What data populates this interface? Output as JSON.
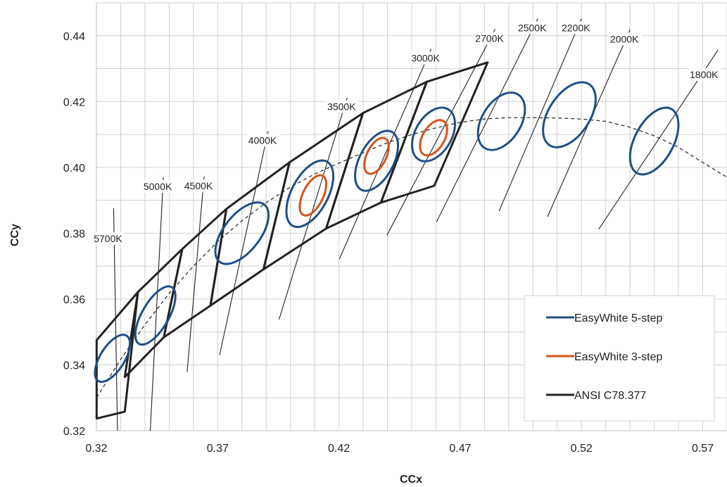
{
  "chart_data": {
    "type": "scatter",
    "xlabel": "CCx",
    "ylabel": "CCy",
    "xlim": [
      0.32,
      0.58
    ],
    "ylim": [
      0.32,
      0.45
    ],
    "x_ticks": [
      "0.32",
      "0.37",
      "0.42",
      "0.47",
      "0.52",
      "0.57"
    ],
    "x_tick_values": [
      0.32,
      0.37,
      0.42,
      0.47,
      0.52,
      0.57
    ],
    "y_ticks": [
      "0.32",
      "0.34",
      "0.36",
      "0.38",
      "0.40",
      "0.42",
      "0.44"
    ],
    "y_tick_values": [
      0.32,
      0.34,
      0.36,
      0.38,
      0.4,
      0.42,
      0.44
    ],
    "grid": true,
    "legend_placement": "bottom-right",
    "legend": [
      {
        "name": "EasyWhite 5-step",
        "color": "#1f4e87"
      },
      {
        "name": "EasyWhite 3-step",
        "color": "#d4541c"
      },
      {
        "name": "ANSI C78.377",
        "color": "#222222"
      }
    ],
    "cct_lines": [
      {
        "label": "5700K",
        "x1": 0.3271,
        "y1": 0.3876,
        "x2": 0.3287,
        "y2": 0.32
      },
      {
        "label": "5000K",
        "x1": 0.3476,
        "y1": 0.397,
        "x2": 0.3422,
        "y2": 0.32
      },
      {
        "label": "4500K",
        "x1": 0.3644,
        "y1": 0.3972,
        "x2": 0.3574,
        "y2": 0.3378
      },
      {
        "label": "4000K",
        "x1": 0.3908,
        "y1": 0.411,
        "x2": 0.3708,
        "y2": 0.343
      },
      {
        "label": "3500K",
        "x1": 0.4234,
        "y1": 0.4212,
        "x2": 0.3953,
        "y2": 0.3538
      },
      {
        "label": "3000K",
        "x1": 0.458,
        "y1": 0.436,
        "x2": 0.4202,
        "y2": 0.3722
      },
      {
        "label": "2700K",
        "x1": 0.4844,
        "y1": 0.442,
        "x2": 0.4398,
        "y2": 0.3794
      },
      {
        "label": "2500K",
        "x1": 0.502,
        "y1": 0.4452,
        "x2": 0.4602,
        "y2": 0.3834
      },
      {
        "label": "2200K",
        "x1": 0.52,
        "y1": 0.4452,
        "x2": 0.486,
        "y2": 0.3867
      },
      {
        "label": "2000K",
        "x1": 0.54,
        "y1": 0.4418,
        "x2": 0.506,
        "y2": 0.385
      },
      {
        "label": "1800K",
        "x1": 0.5763,
        "y1": 0.4357,
        "x2": 0.5271,
        "y2": 0.3812
      }
    ],
    "planckian_locus": {
      "x": [
        0.3201,
        0.33,
        0.34,
        0.35,
        0.36,
        0.37,
        0.38,
        0.39,
        0.4,
        0.41,
        0.42,
        0.43,
        0.44,
        0.45,
        0.46,
        0.47,
        0.48,
        0.49,
        0.5,
        0.51,
        0.52,
        0.53,
        0.54,
        0.55,
        0.56,
        0.57,
        0.58
      ],
      "y": [
        0.33,
        0.3417,
        0.3522,
        0.3617,
        0.37,
        0.3774,
        0.3838,
        0.3893,
        0.394,
        0.398,
        0.4013,
        0.4045,
        0.4075,
        0.41,
        0.412,
        0.4137,
        0.4147,
        0.4151,
        0.4151,
        0.415,
        0.4147,
        0.414,
        0.4122,
        0.4096,
        0.4061,
        0.4015,
        0.397
      ]
    },
    "ansi_quadrangles": [
      [
        [
          0.3201,
          0.3475
        ],
        [
          0.3371,
          0.3621
        ],
        [
          0.3317,
          0.3258
        ],
        [
          0.3201,
          0.3237
        ]
      ],
      [
        [
          0.3371,
          0.3621
        ],
        [
          0.3554,
          0.3752
        ],
        [
          0.3478,
          0.3484
        ],
        [
          0.3317,
          0.3363
        ]
      ],
      [
        [
          0.3554,
          0.3752
        ],
        [
          0.3736,
          0.3874
        ],
        [
          0.367,
          0.358
        ],
        [
          0.3478,
          0.3484
        ]
      ],
      [
        [
          0.3736,
          0.3874
        ],
        [
          0.3996,
          0.4015
        ],
        [
          0.3889,
          0.369
        ],
        [
          0.367,
          0.358
        ]
      ],
      [
        [
          0.3996,
          0.4015
        ],
        [
          0.4299,
          0.4165
        ],
        [
          0.4147,
          0.3814
        ],
        [
          0.3889,
          0.369
        ]
      ],
      [
        [
          0.4299,
          0.4165
        ],
        [
          0.4562,
          0.426
        ],
        [
          0.4373,
          0.3893
        ],
        [
          0.4147,
          0.3814
        ]
      ],
      [
        [
          0.4562,
          0.426
        ],
        [
          0.4813,
          0.4319
        ],
        [
          0.4593,
          0.3944
        ],
        [
          0.4373,
          0.3893
        ]
      ]
    ],
    "easywhite_5_step": [
      {
        "cx": 0.3266,
        "cy": 0.342,
        "rx": 0.011,
        "ry": 0.005,
        "angle": -58
      },
      {
        "cx": 0.3443,
        "cy": 0.355,
        "rx": 0.0135,
        "ry": 0.0055,
        "angle": -60
      },
      {
        "cx": 0.38,
        "cy": 0.38,
        "rx": 0.015,
        "ry": 0.0075,
        "angle": -52
      },
      {
        "cx": 0.408,
        "cy": 0.392,
        "rx": 0.015,
        "ry": 0.0075,
        "angle": -62
      },
      {
        "cx": 0.4355,
        "cy": 0.402,
        "rx": 0.0135,
        "ry": 0.007,
        "angle": -62
      },
      {
        "cx": 0.459,
        "cy": 0.41,
        "rx": 0.012,
        "ry": 0.0075,
        "angle": -60
      },
      {
        "cx": 0.487,
        "cy": 0.414,
        "rx": 0.013,
        "ry": 0.008,
        "angle": -58
      },
      {
        "cx": 0.515,
        "cy": 0.416,
        "rx": 0.015,
        "ry": 0.0085,
        "angle": -57
      },
      {
        "cx": 0.55,
        "cy": 0.408,
        "rx": 0.015,
        "ry": 0.008,
        "angle": -62
      }
    ],
    "easywhite_3_step": [
      {
        "cx": 0.4093,
        "cy": 0.3915,
        "rx": 0.009,
        "ry": 0.0042,
        "angle": -64
      },
      {
        "cx": 0.4355,
        "cy": 0.4035,
        "rx": 0.008,
        "ry": 0.004,
        "angle": -64
      },
      {
        "cx": 0.459,
        "cy": 0.409,
        "rx": 0.008,
        "ry": 0.0045,
        "angle": -60
      }
    ]
  }
}
